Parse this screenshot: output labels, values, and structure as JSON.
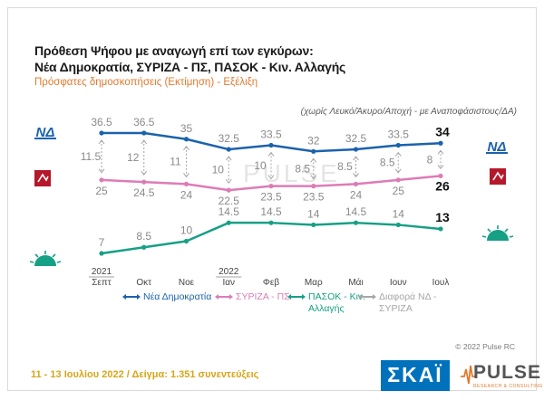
{
  "title_line1": "Πρόθεση Ψήφου με αναγωγή επί των εγκύρων:",
  "title_line2": "Νέα Δημοκρατία, ΣΥΡΙΖΑ - ΠΣ, ΠΑΣΟΚ - Κιν. Αλλαγής",
  "subtitle": "Πρόσφατες δημοσκοπήσεις (Εκτίμηση) - Εξέλιξη",
  "note": "(χωρίς Λευκό/Άκυρο/Αποχή - με Αναποφάσιστους/ΔΑ)",
  "watermark": "PULSE",
  "copyright": "© 2022 Pulse RC",
  "survey_info": "11 - 13 Ιουλίου  2022  /  Δείγμα:  1.351 συνεντεύξεις",
  "brand_skai": "ΣΚΑΪ",
  "brand_pulse": "PULSE",
  "brand_pulse_sub": "RESEARCH & CONSULTING",
  "nd_logo_text": "ΝΔ",
  "legend": [
    {
      "label": "Νέα Δημοκρατία",
      "color": "#1b62ad"
    },
    {
      "label": "ΣΥΡΙΖΑ - ΠΣ",
      "color": "#dd7cb6"
    },
    {
      "label": "ΠΑΣΟΚ - Κιν. Αλλαγής",
      "color": "#16a085"
    },
    {
      "label": "Διαφορά ΝΔ - ΣΥΡΙΖΑ",
      "color": "#a6a6a6"
    }
  ],
  "chart_data": {
    "type": "line",
    "categories": [
      [
        "2021",
        "Σεπτ"
      ],
      [
        "Οκτ"
      ],
      [
        "Νοε"
      ],
      [
        "2022",
        "Ιαν"
      ],
      [
        "Φεβ"
      ],
      [
        "Μαρ"
      ],
      [
        "Μάι"
      ],
      [
        "Ιουν"
      ],
      [
        "Ιουλ"
      ]
    ],
    "series": [
      {
        "name": "Νέα Δημοκρατία",
        "color": "#1b62ad",
        "values": [
          36.5,
          36.5,
          35,
          32.5,
          33.5,
          32,
          32.5,
          33.5,
          34
        ]
      },
      {
        "name": "ΣΥΡΙΖΑ - ΠΣ",
        "color": "#dd7cb6",
        "values": [
          25,
          24.5,
          24,
          22.5,
          23.5,
          23.5,
          24,
          25,
          26
        ]
      },
      {
        "name": "ΠΑΣΟΚ - Κιν. Αλλαγής",
        "color": "#16a085",
        "values": [
          7,
          8.5,
          10,
          14.5,
          14.5,
          14,
          14.5,
          14,
          13
        ]
      },
      {
        "name": "Διαφορά ΝΔ - ΣΥΡΙΖΑ",
        "color": "#a6a6a6",
        "values": [
          11.5,
          12,
          11,
          10,
          10,
          8.5,
          8.5,
          8.5,
          8
        ]
      }
    ],
    "last_labels": [
      "34",
      "26",
      "13"
    ],
    "ylim": [
      5,
      38
    ]
  }
}
